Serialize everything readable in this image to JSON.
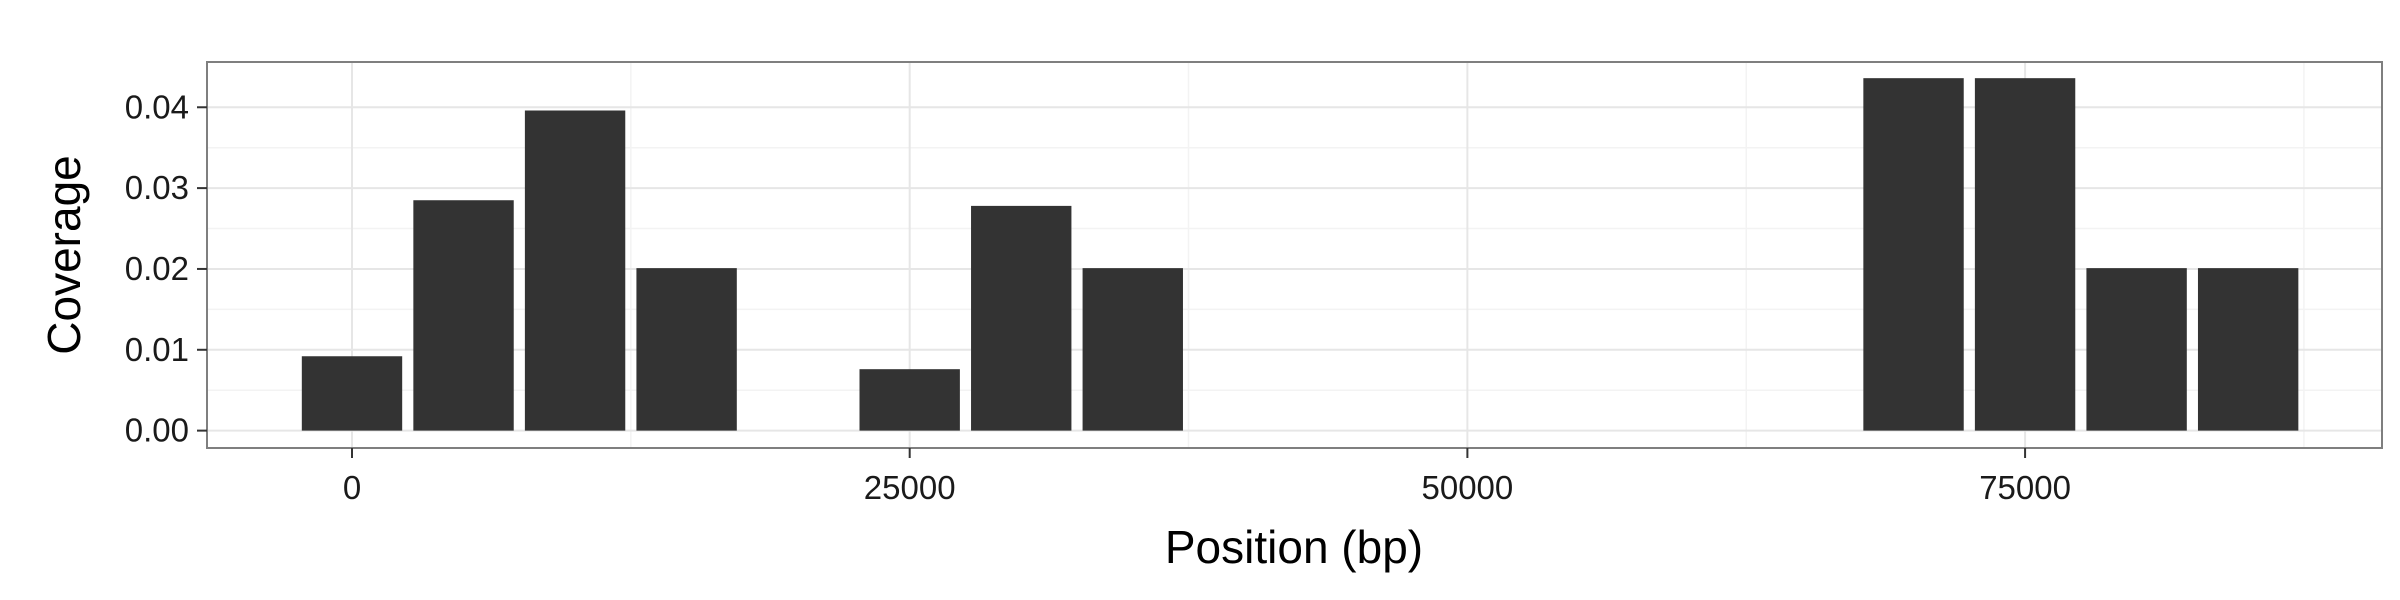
{
  "chart_data": {
    "type": "bar",
    "title": "",
    "xlabel": "Position (bp)",
    "ylabel": "Coverage",
    "xlim": [
      -6500,
      91000
    ],
    "ylim": [
      -0.00215,
      0.0456
    ],
    "x_major_ticks": [
      0,
      25000,
      50000,
      75000
    ],
    "x_tick_labels": [
      "0",
      "25000",
      "50000",
      "75000"
    ],
    "x_minor_gridlines": [
      12500,
      37500,
      62500,
      87500
    ],
    "y_major_ticks": [
      0.0,
      0.01,
      0.02,
      0.03,
      0.04
    ],
    "y_tick_labels": [
      "0.00",
      "0.01",
      "0.02",
      "0.03",
      "0.04"
    ],
    "y_minor_gridlines": [
      0.005,
      0.015,
      0.025,
      0.035
    ],
    "grid": true,
    "bar_width": 4500,
    "bar_color": "#333333",
    "bars": [
      {
        "x": 0,
        "value": 0.0092
      },
      {
        "x": 5000,
        "value": 0.0285
      },
      {
        "x": 10000,
        "value": 0.0396
      },
      {
        "x": 15000,
        "value": 0.0201
      },
      {
        "x": 25000,
        "value": 0.0076
      },
      {
        "x": 30000,
        "value": 0.0278
      },
      {
        "x": 35000,
        "value": 0.0201
      },
      {
        "x": 70000,
        "value": 0.0436
      },
      {
        "x": 75000,
        "value": 0.0436
      },
      {
        "x": 80000,
        "value": 0.0201
      },
      {
        "x": 85000,
        "value": 0.0201
      }
    ]
  }
}
